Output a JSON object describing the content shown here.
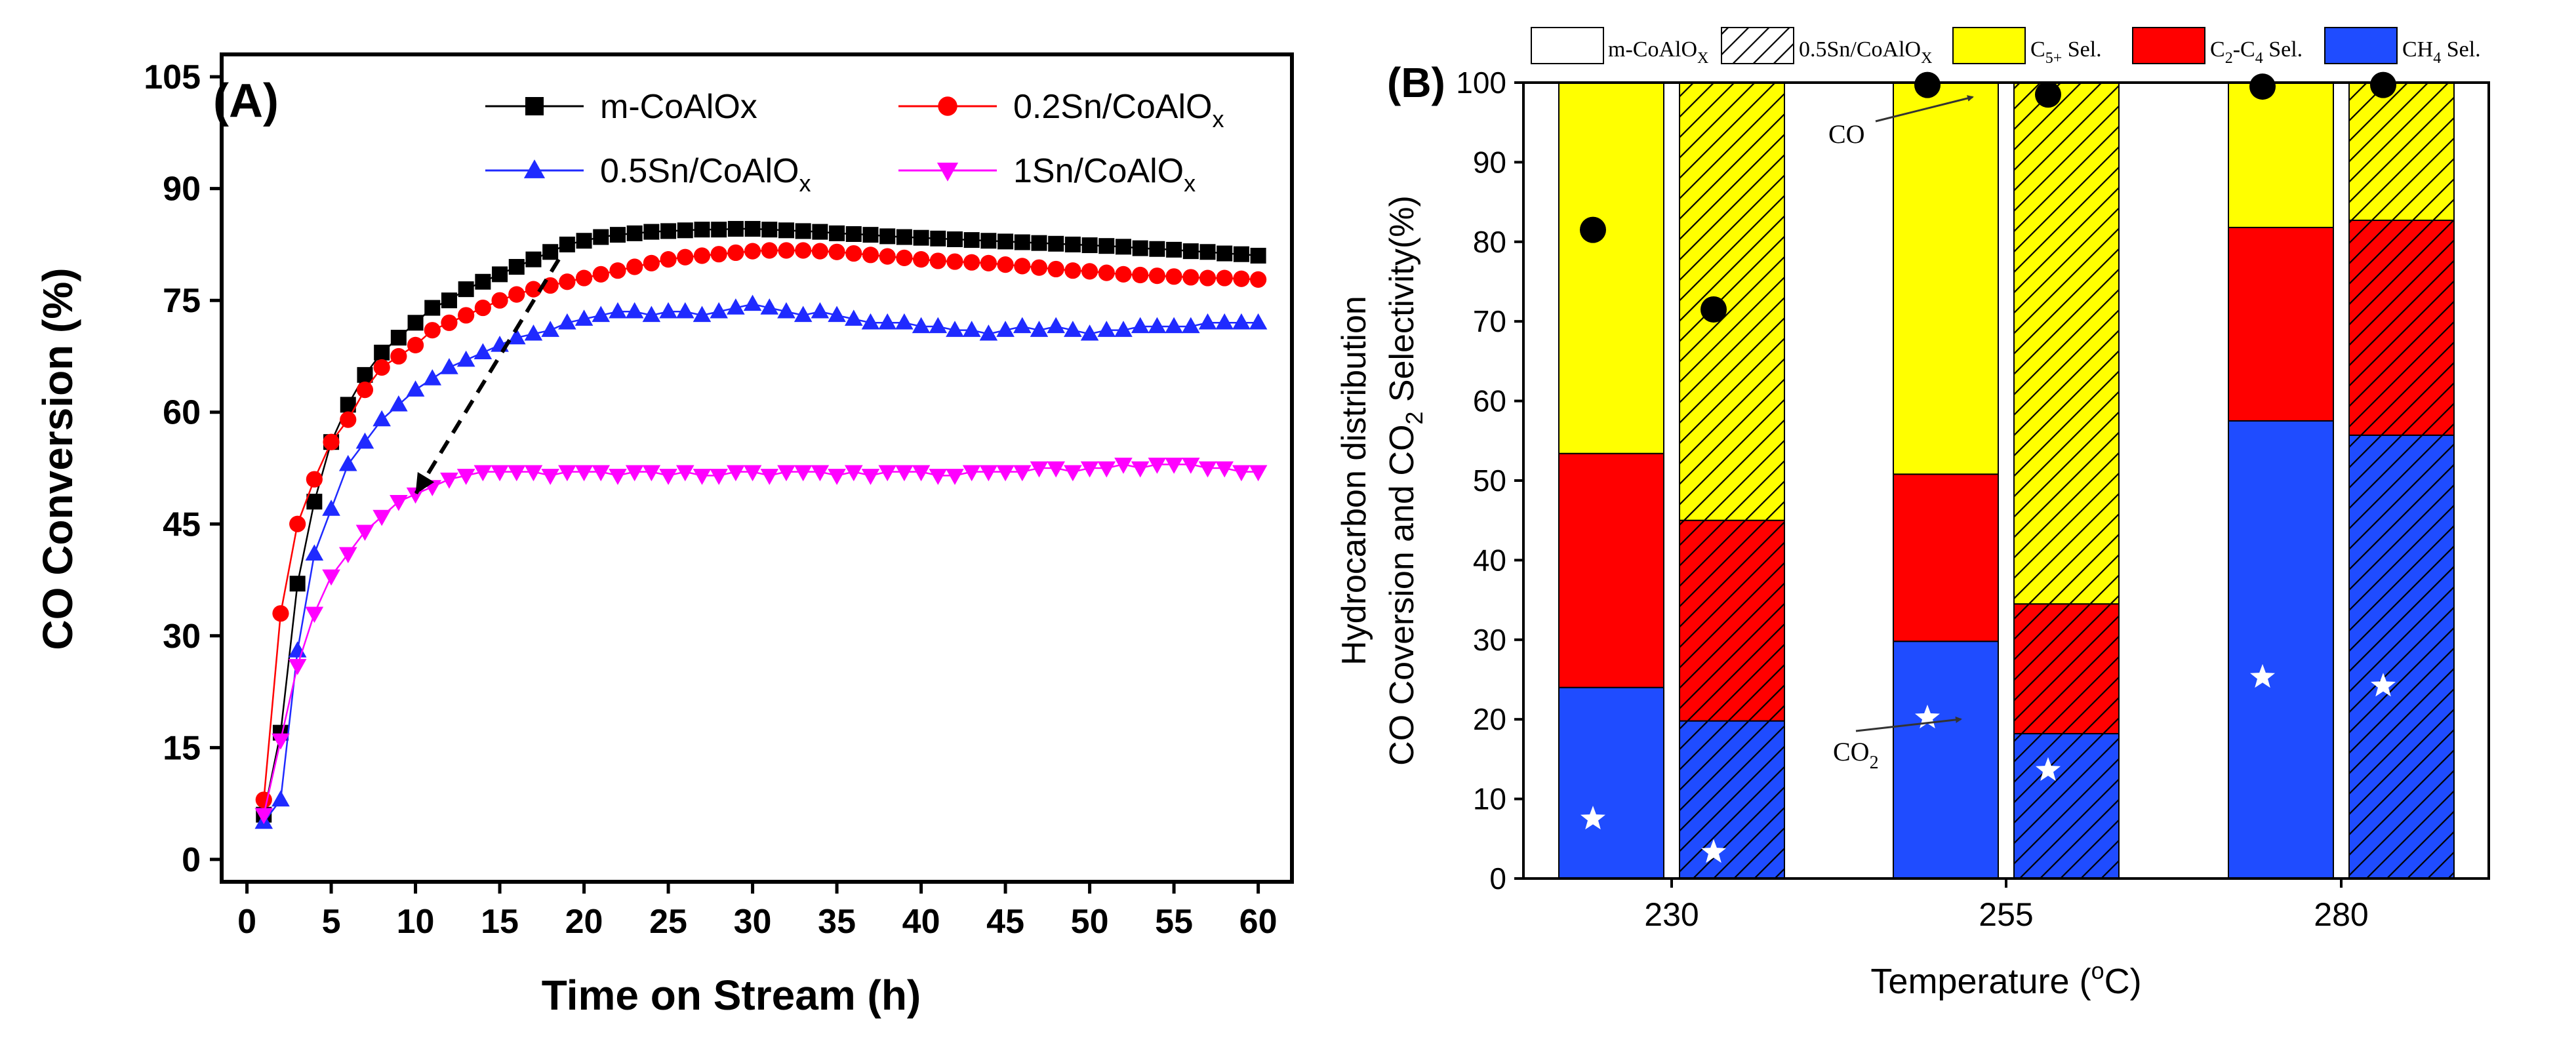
{
  "colors": {
    "m_CoAlOx": "#000000",
    "sn02": "#ff0000",
    "sn05": "#1f2aff",
    "sn1": "#ff00ff",
    "c5": "#ffff00",
    "c2c4": "#ff0000",
    "ch4": "#1f4cff"
  },
  "chart_data": [
    {
      "type": "line",
      "panel_label": "(A)",
      "title": "",
      "xlabel": "Time on Stream  (h)",
      "ylabel": "CO Conversion (%)",
      "xlim": [
        -1.5,
        62
      ],
      "ylim": [
        -3,
        108
      ],
      "xticks": [
        "0",
        "5",
        "10",
        "15",
        "20",
        "25",
        "30",
        "35",
        "40",
        "45",
        "50",
        "55",
        "60"
      ],
      "yticks": [
        "0",
        "15",
        "30",
        "45",
        "60",
        "75",
        "90",
        "105"
      ],
      "legend_position": "top",
      "series": [
        {
          "name": "m-CoAlOx",
          "marker": "square",
          "color": "#000000",
          "x": [
            1,
            2,
            3,
            4,
            5,
            6,
            7,
            8,
            9,
            10,
            11,
            12,
            13,
            14,
            15,
            16,
            17,
            18,
            19,
            20,
            21,
            22,
            23,
            24,
            25,
            26,
            27,
            28,
            29,
            30,
            31,
            32,
            33,
            34,
            35,
            36,
            37,
            38,
            39,
            40,
            41,
            42,
            43,
            44,
            45,
            46,
            47,
            48,
            49,
            50,
            51,
            52,
            53,
            54,
            55,
            56,
            57,
            58,
            59,
            60
          ],
          "y": [
            6,
            17,
            37,
            48,
            56,
            61,
            65,
            68,
            70,
            72,
            74,
            75,
            76.5,
            77.5,
            78.5,
            79.5,
            80.5,
            81.5,
            82.5,
            83,
            83.5,
            83.8,
            84,
            84.2,
            84.3,
            84.4,
            84.5,
            84.5,
            84.6,
            84.6,
            84.5,
            84.4,
            84.3,
            84.2,
            84,
            83.9,
            83.8,
            83.6,
            83.5,
            83.4,
            83.3,
            83.2,
            83.1,
            83,
            82.9,
            82.8,
            82.7,
            82.6,
            82.5,
            82.4,
            82.3,
            82.2,
            82,
            81.9,
            81.8,
            81.6,
            81.5,
            81.3,
            81.2,
            81
          ]
        },
        {
          "name": "0.2Sn/CoAlOx",
          "marker": "circle",
          "color": "#ff0000",
          "x": [
            1,
            2,
            3,
            4,
            5,
            6,
            7,
            8,
            9,
            10,
            11,
            12,
            13,
            14,
            15,
            16,
            17,
            18,
            19,
            20,
            21,
            22,
            23,
            24,
            25,
            26,
            27,
            28,
            29,
            30,
            31,
            32,
            33,
            34,
            35,
            36,
            37,
            38,
            39,
            40,
            41,
            42,
            43,
            44,
            45,
            46,
            47,
            48,
            49,
            50,
            51,
            52,
            53,
            54,
            55,
            56,
            57,
            58,
            59,
            60
          ],
          "y": [
            8,
            33,
            45,
            51,
            56,
            59,
            63,
            66,
            67.5,
            69,
            71,
            72,
            73,
            74,
            75,
            75.8,
            76.5,
            77,
            77.5,
            78,
            78.5,
            79,
            79.5,
            80,
            80.5,
            80.8,
            81,
            81.2,
            81.4,
            81.6,
            81.7,
            81.7,
            81.7,
            81.6,
            81.5,
            81.3,
            81.1,
            80.9,
            80.7,
            80.5,
            80.3,
            80.2,
            80.1,
            80,
            79.8,
            79.6,
            79.4,
            79.2,
            79,
            78.9,
            78.7,
            78.5,
            78.4,
            78.3,
            78.2,
            78.1,
            78,
            78,
            77.9,
            77.8
          ]
        },
        {
          "name": "0.5Sn/CoAlOx",
          "marker": "triangle-up",
          "color": "#1f2aff",
          "x": [
            1,
            2,
            3,
            4,
            5,
            6,
            7,
            8,
            9,
            10,
            11,
            12,
            13,
            14,
            15,
            16,
            17,
            18,
            19,
            20,
            21,
            22,
            23,
            24,
            25,
            26,
            27,
            28,
            29,
            30,
            31,
            32,
            33,
            34,
            35,
            36,
            37,
            38,
            39,
            40,
            41,
            42,
            43,
            44,
            45,
            46,
            47,
            48,
            49,
            50,
            51,
            52,
            53,
            54,
            55,
            56,
            57,
            58,
            59,
            60
          ],
          "y": [
            5,
            8,
            28,
            41,
            47,
            53,
            56,
            59,
            61,
            63,
            64.5,
            66,
            67,
            68,
            69,
            70,
            70.5,
            71,
            72,
            72.5,
            73,
            73.5,
            73.5,
            73,
            73.5,
            73.5,
            73,
            73.5,
            74,
            74.5,
            74,
            73.5,
            73,
            73.5,
            73,
            72.5,
            72,
            72,
            72,
            71.5,
            71.5,
            71,
            71,
            70.5,
            71,
            71.5,
            71,
            71.5,
            71,
            70.5,
            71,
            71,
            71.5,
            71.5,
            71.5,
            71.5,
            72,
            72,
            72,
            72
          ]
        },
        {
          "name": "1Sn/CoAlOx",
          "marker": "triangle-down",
          "color": "#ff00ff",
          "x": [
            1,
            2,
            3,
            4,
            5,
            6,
            7,
            8,
            9,
            10,
            11,
            12,
            13,
            14,
            15,
            16,
            17,
            18,
            19,
            20,
            21,
            22,
            23,
            24,
            25,
            26,
            27,
            28,
            29,
            30,
            31,
            32,
            33,
            34,
            35,
            36,
            37,
            38,
            39,
            40,
            41,
            42,
            43,
            44,
            45,
            46,
            47,
            48,
            49,
            50,
            51,
            52,
            53,
            54,
            55,
            56,
            57,
            58,
            59,
            60
          ],
          "y": [
            6,
            16,
            26,
            33,
            38,
            41,
            44,
            46,
            48,
            49,
            50,
            51,
            51.5,
            52,
            52,
            52,
            52,
            51.5,
            52,
            52,
            52,
            51.5,
            52,
            52,
            51.5,
            52,
            51.5,
            51.5,
            52,
            52,
            51.5,
            52,
            52,
            52,
            51.5,
            52,
            51.5,
            52,
            52,
            52,
            51.5,
            51.5,
            52,
            52,
            52,
            52,
            52.5,
            52.5,
            52,
            52.5,
            52.5,
            53,
            52.5,
            53,
            53,
            53,
            52.5,
            52.5,
            52,
            52
          ]
        }
      ],
      "annotations": [
        {
          "type": "arrow",
          "style": "dashed",
          "from": [
            18.5,
            80.5
          ],
          "to": [
            10,
            49
          ]
        }
      ]
    },
    {
      "type": "bar",
      "variant": "stacked",
      "panel_label": "(B)",
      "title": "",
      "xlabel": "Temperature (°C)",
      "ylabel_lines": [
        "Hydrocarbon distribution",
        "CO Coversion and CO2 Selectivity(%)"
      ],
      "ylim": [
        0,
        100
      ],
      "yticks": [
        "0",
        "10",
        "20",
        "30",
        "40",
        "50",
        "60",
        "70",
        "80",
        "90",
        "100"
      ],
      "categories": [
        "230",
        "255",
        "280"
      ],
      "samples": [
        "m-CoAlOx",
        "0.5Sn/CoAlOx"
      ],
      "legend_position": "top",
      "legend": [
        "m-CoAlOx",
        "0.5Sn/CoAlOx",
        "C5+ Sel.",
        "C2-C4 Sel.",
        "CH4 Sel."
      ],
      "series": [
        {
          "name": "CH4 Sel.",
          "color": "#1f4cff",
          "values": [
            [
              24,
              19.8
            ],
            [
              29.8,
              18.2
            ],
            [
              57.5,
              55.7
            ]
          ]
        },
        {
          "name": "C2-C4 Sel.",
          "color": "#ff0000",
          "values": [
            [
              29.4,
              25.2
            ],
            [
              21,
              16.3
            ],
            [
              24.3,
              27
            ]
          ]
        },
        {
          "name": "C5+ Sel.",
          "color": "#ffff00",
          "values": [
            [
              46.6,
              55
            ],
            [
              49.2,
              65.5
            ],
            [
              18.2,
              17.3
            ]
          ]
        }
      ],
      "co_conversion": [
        [
          81.5,
          71.5
        ],
        [
          99.7,
          98.5
        ],
        [
          99.5,
          99.7
        ]
      ],
      "co2_selectivity": [
        [
          7.5,
          3.3
        ],
        [
          20.2,
          13.6
        ],
        [
          25.3,
          24.2
        ]
      ],
      "point_labels": {
        "co": "CO",
        "co2": "CO2"
      }
    }
  ]
}
